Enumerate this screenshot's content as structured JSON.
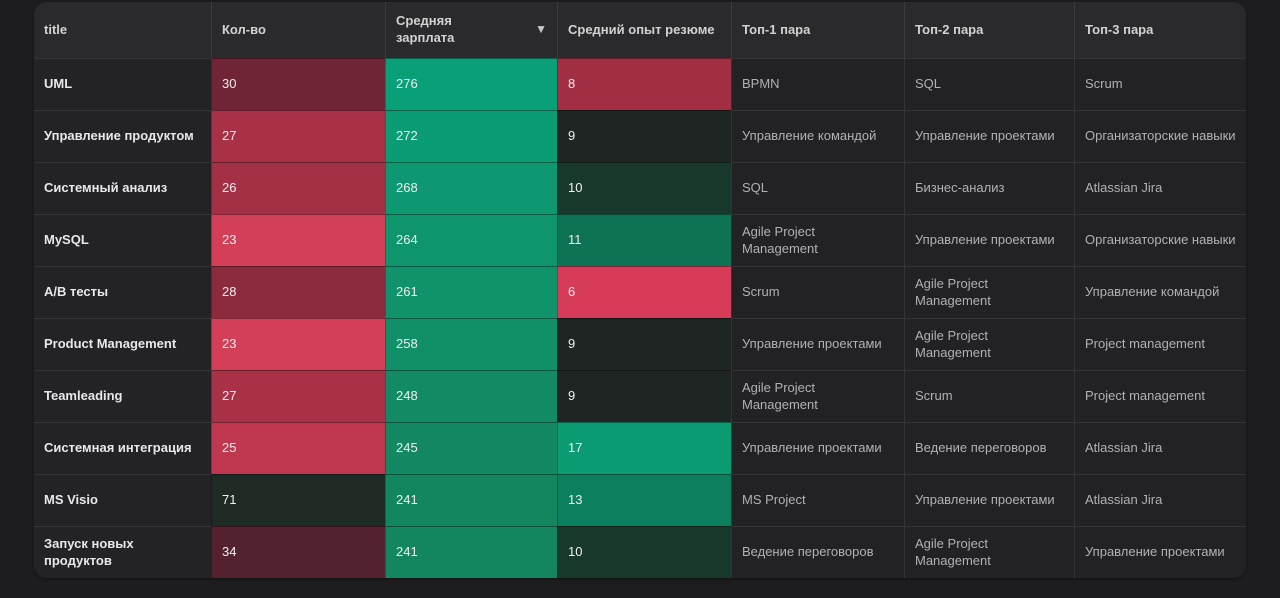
{
  "page": {
    "background": "#1d1d1f"
  },
  "table": {
    "sort_icon": "▼",
    "sorted_column": "Средняя зарплата",
    "sort_direction": "desc",
    "columns": [
      {
        "key": "title",
        "label": "title"
      },
      {
        "key": "count",
        "label": "Кол-во"
      },
      {
        "key": "salary",
        "label": "Средняя зарплата"
      },
      {
        "key": "experience",
        "label": "Средний опыт резюме"
      },
      {
        "key": "top1",
        "label": "Топ-1 пара"
      },
      {
        "key": "top2",
        "label": "Топ-2 пара"
      },
      {
        "key": "top3",
        "label": "Топ-3 пара"
      }
    ],
    "rows": [
      {
        "title": "UML",
        "count": "30",
        "count_bg": "#6f2533",
        "salary": "276",
        "salary_bg": "#09a077",
        "experience": "8",
        "experience_bg": "#a22e44",
        "top1": "BPMN",
        "top2": "SQL",
        "top3": "Scrum"
      },
      {
        "title": "Управление продуктом",
        "count": "27",
        "count_bg": "#a93147",
        "salary": "272",
        "salary_bg": "#0c9c74",
        "experience": "9",
        "experience_bg": "#1f2522",
        "top1": "Управление командой",
        "top2": "Управление проектами",
        "top3": "Организаторские навыки"
      },
      {
        "title": "Системный анализ",
        "count": "26",
        "count_bg": "#a33045",
        "salary": "268",
        "salary_bg": "#0e9871",
        "experience": "10",
        "experience_bg": "#17382a",
        "top1": "SQL",
        "top2": "Бизнес-анализ",
        "top3": "Atlassian Jira"
      },
      {
        "title": "MySQL",
        "count": "23",
        "count_bg": "#d43f58",
        "salary": "264",
        "salary_bg": "#0f956e",
        "experience": "11",
        "experience_bg": "#0e7254",
        "top1": "Agile Project Management",
        "top2": "Управление проектами",
        "top3": "Организаторские навыки"
      },
      {
        "title": "A/B тесты",
        "count": "28",
        "count_bg": "#8c2b3d",
        "salary": "261",
        "salary_bg": "#10926b",
        "experience": "6",
        "experience_bg": "#d63b58",
        "top1": "Scrum",
        "top2": "Agile Project Management",
        "top3": "Управление командой"
      },
      {
        "title": "Product Management",
        "count": "23",
        "count_bg": "#d43f58",
        "salary": "258",
        "salary_bg": "#118f68",
        "experience": "9",
        "experience_bg": "#1f2522",
        "top1": "Управление проектами",
        "top2": "Agile Project Management",
        "top3": "Project management"
      },
      {
        "title": "Teamleading",
        "count": "27",
        "count_bg": "#a93147",
        "salary": "248",
        "salary_bg": "#128a64",
        "experience": "9",
        "experience_bg": "#1f2522",
        "top1": "Agile Project Management",
        "top2": "Scrum",
        "top3": "Project management"
      },
      {
        "title": "Системная интеграция",
        "count": "25",
        "count_bg": "#bf3850",
        "salary": "245",
        "salary_bg": "#138862",
        "experience": "17",
        "experience_bg": "#0a9b72",
        "top1": "Управление проектами",
        "top2": "Ведение переговоров",
        "top3": "Atlassian Jira"
      },
      {
        "title": "MS Visio",
        "count": "71",
        "count_bg": "#1e2b24",
        "salary": "241",
        "salary_bg": "#13865f",
        "experience": "13",
        "experience_bg": "#0c7f5e",
        "top1": "MS Project",
        "top2": "Управление проектами",
        "top3": "Atlassian Jira"
      },
      {
        "title": "Запуск новых продуктов",
        "count": "34",
        "count_bg": "#54222e",
        "salary": "241",
        "salary_bg": "#13865f",
        "experience": "10",
        "experience_bg": "#17382a",
        "top1": "Ведение переговоров",
        "top2": "Agile Project Management",
        "top3": "Управление проектами"
      }
    ]
  }
}
